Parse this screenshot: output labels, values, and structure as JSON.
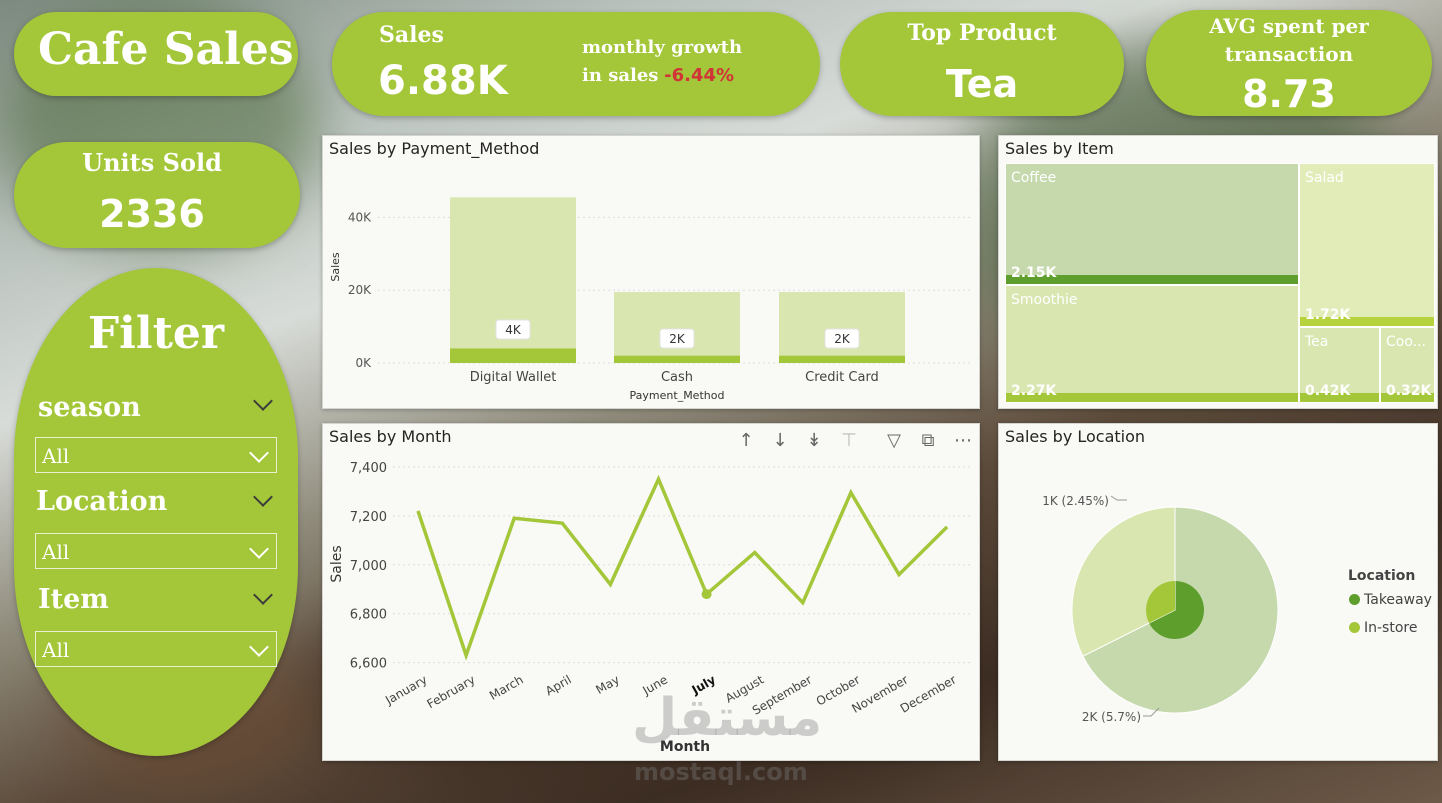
{
  "header": {
    "title": "Cafe Sales",
    "sales": {
      "label": "Sales",
      "value": "6.88K"
    },
    "growth": {
      "label_line1": "monthly growth",
      "label_line2": "in sales",
      "value": "-6.44%"
    },
    "top_product": {
      "label": "Top Product",
      "value": "Tea"
    },
    "avg_spent": {
      "label_line1": "AVG spent per",
      "label_line2": "transaction",
      "value": "8.73"
    },
    "units_sold": {
      "label": "Units Sold",
      "value": "2336"
    }
  },
  "filter": {
    "title": "Filter",
    "season": {
      "label": "season",
      "value": "All"
    },
    "location": {
      "label": "Location",
      "value": "All"
    },
    "item": {
      "label": "Item",
      "value": "All"
    }
  },
  "watermark": {
    "arabic": "مستقل",
    "latin": "mostaql.com"
  },
  "colors": {
    "accent": "#a4c639",
    "dark_green": "#5e9e2c",
    "light_green": "#d9e6b0",
    "negative": "#d13438"
  },
  "chart_data": [
    {
      "type": "bar",
      "title": "Sales by Payment_Method",
      "xlabel": "Payment_Method",
      "ylabel": "Sales",
      "categories": [
        "Digital Wallet",
        "Cash",
        "Credit Card"
      ],
      "series": [
        {
          "values": [
            45500,
            19500,
            19500
          ]
        },
        {
          "values": [
            4000,
            2000,
            2000
          ]
        }
      ],
      "data_labels": [
        "4K",
        "2K",
        "2K"
      ],
      "yticks": [
        "0K",
        "20K",
        "40K"
      ],
      "ylim": [
        0,
        50000
      ],
      "grid": true
    },
    {
      "type": "treemap",
      "title": "Sales by Item",
      "items": [
        {
          "name": "Coffee",
          "label": "2.15K"
        },
        {
          "name": "Smoothie",
          "label": "2.27K"
        },
        {
          "name": "Salad",
          "label": "1.72K"
        },
        {
          "name": "Tea",
          "label": "0.42K"
        },
        {
          "name": "Coo...",
          "label": "0.32K"
        }
      ]
    },
    {
      "type": "line",
      "title": "Sales by Month",
      "xlabel": "Month",
      "ylabel": "Sales",
      "categories": [
        "January",
        "February",
        "March",
        "April",
        "May",
        "June",
        "July",
        "August",
        "September",
        "October",
        "November",
        "December"
      ],
      "values": [
        7220,
        6630,
        7190,
        7170,
        6920,
        7350,
        6880,
        7050,
        6845,
        7295,
        6960,
        7155
      ],
      "highlighted": "July",
      "yticks": [
        "6,600",
        "6,800",
        "7,000",
        "7,200",
        "7,400"
      ],
      "ylim": [
        6570,
        7420
      ],
      "grid": true,
      "toolbar_icons": [
        "arrow-up-icon",
        "arrow-down-icon",
        "double-arrow-down-icon",
        "expand-hierarchy-icon",
        "filter-icon",
        "focus-mode-icon",
        "more-options-icon"
      ]
    },
    {
      "type": "pie",
      "title": "Sales by Location",
      "legend_title": "Location",
      "legend_position": "right",
      "slices": [
        {
          "name": "Takeaway",
          "label": "2K (5.7%)",
          "fraction": 0.676
        },
        {
          "name": "In-store",
          "label": "1K (2.45%)",
          "fraction": 0.324
        }
      ],
      "legend": [
        "Takeaway",
        "In-store"
      ]
    }
  ]
}
